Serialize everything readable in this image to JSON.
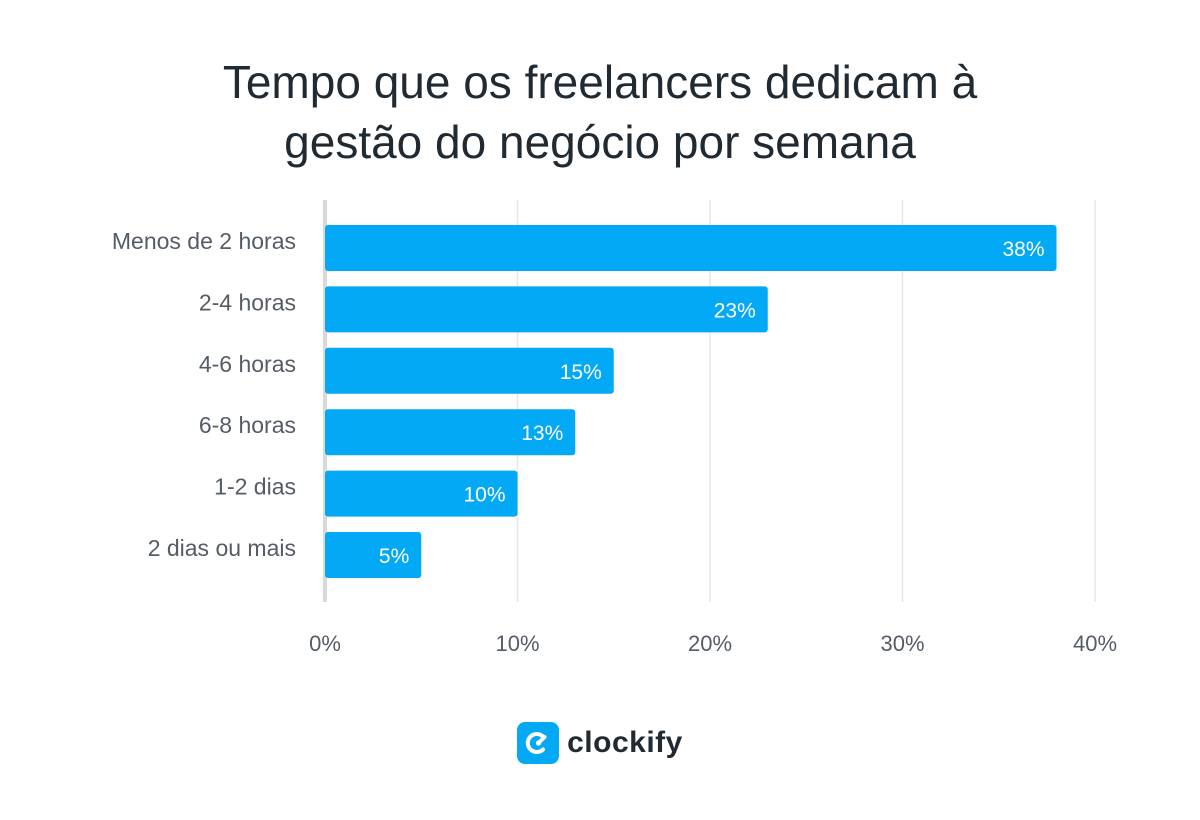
{
  "header": {
    "title_lines": [
      "Tempo que os freelancers dedicam à",
      "gestão do negócio por semana"
    ]
  },
  "chart_data": {
    "type": "bar",
    "orientation": "horizontal",
    "title": "Tempo que os freelancers dedicam à gestão do negócio por semana",
    "categories": [
      "Menos de 2 horas",
      "2-4 horas",
      "4-6 horas",
      "6-8 horas",
      "1-2 dias",
      "2 dias ou mais"
    ],
    "values": [
      38,
      23,
      15,
      13,
      10,
      5
    ],
    "value_labels": [
      "38%",
      "23%",
      "15%",
      "13%",
      "10%",
      "5%"
    ],
    "xticks": [
      0,
      10,
      20,
      30,
      40
    ],
    "xtick_labels": [
      "0%",
      "10%",
      "20%",
      "30%",
      "40%"
    ],
    "xlim": [
      0,
      40
    ],
    "xlabel": "",
    "ylabel": "",
    "grid": "vertical",
    "bar_color": "#03a9f4",
    "grid_color": "#e6e6e6",
    "axis_color": "#d9d9d9"
  },
  "footer": {
    "brand_name": "clockify",
    "brand_icon": "clockify-logo-icon",
    "brand_color": "#03a9f4"
  }
}
